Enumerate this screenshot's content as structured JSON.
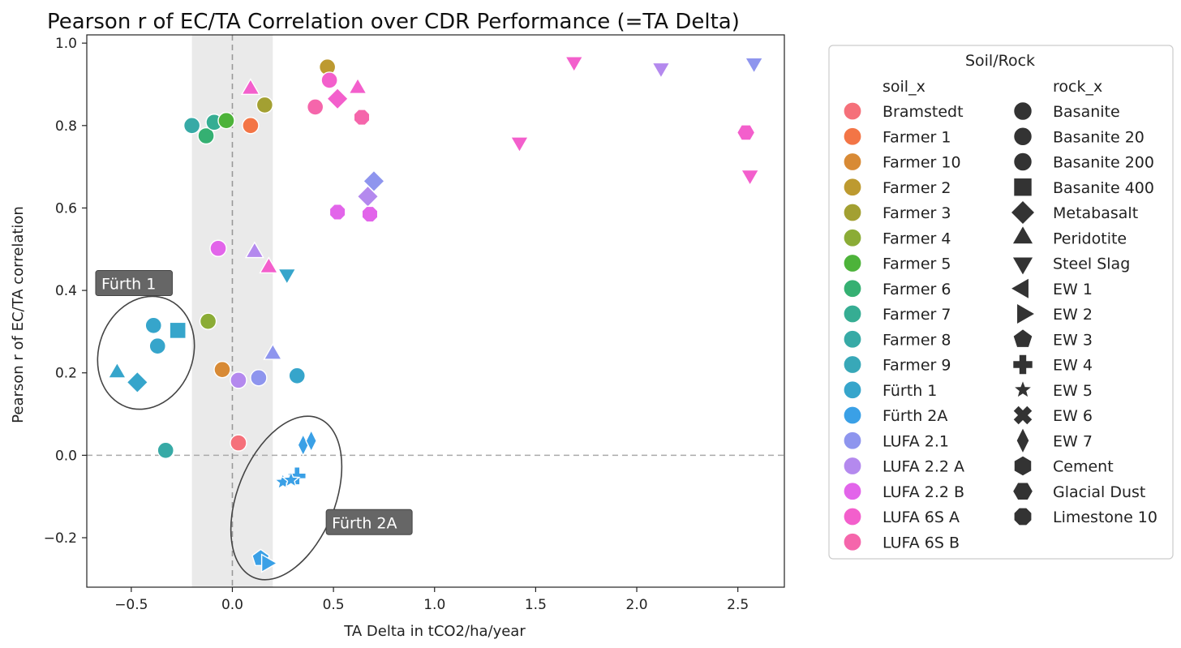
{
  "chart_data": {
    "type": "scatter",
    "title": "Pearson r of EC/TA Correlation over CDR Performance (=TA Delta)",
    "xlabel": "TA Delta in tCO2/ha/year",
    "ylabel": "Pearson r of EC/TA correlation",
    "xlim": [
      -0.72,
      2.73
    ],
    "ylim": [
      -0.32,
      1.02
    ],
    "xticks": [
      -0.5,
      0.0,
      0.5,
      1.0,
      1.5,
      2.0,
      2.5
    ],
    "xtick_labels": [
      "−0.5",
      "0.0",
      "0.5",
      "1.0",
      "1.5",
      "2.0",
      "2.5"
    ],
    "yticks": [
      -0.2,
      0.0,
      0.2,
      0.4,
      0.6,
      0.8,
      1.0
    ],
    "ytick_labels": [
      "−0.2",
      "0.0",
      "0.2",
      "0.4",
      "0.6",
      "0.8",
      "1.0"
    ],
    "shaded_band": [
      -0.2,
      0.2
    ],
    "reference_lines": {
      "x": 0.0,
      "y": 0.0
    },
    "annotations": [
      {
        "label": "Fürth 1",
        "x": -0.66,
        "y": 0.405
      },
      {
        "label": "Fürth 2A",
        "x": 0.48,
        "y": -0.175
      }
    ],
    "legend": {
      "title": "Soil/Rock",
      "soil_header": "soil_x",
      "rock_header": "rock_x",
      "soils": [
        {
          "name": "Bramstedt",
          "color": "#f5707a"
        },
        {
          "name": "Farmer 1",
          "color": "#f37546"
        },
        {
          "name": "Farmer 10",
          "color": "#d88a35"
        },
        {
          "name": "Farmer 2",
          "color": "#bd9a30"
        },
        {
          "name": "Farmer 3",
          "color": "#a3a032"
        },
        {
          "name": "Farmer 4",
          "color": "#8bac36"
        },
        {
          "name": "Farmer 5",
          "color": "#4db33a"
        },
        {
          "name": "Farmer 6",
          "color": "#35b072"
        },
        {
          "name": "Farmer 7",
          "color": "#36ad93"
        },
        {
          "name": "Farmer 8",
          "color": "#37aaa6"
        },
        {
          "name": "Farmer 9",
          "color": "#38a8b8"
        },
        {
          "name": "Fürth 1",
          "color": "#36a5cb"
        },
        {
          "name": "Fürth 2A",
          "color": "#3aa0e6"
        },
        {
          "name": "LUFA 2.1",
          "color": "#8e95ee"
        },
        {
          "name": "LUFA 2.2 A",
          "color": "#b489ee"
        },
        {
          "name": "LUFA 2.2 B",
          "color": "#e265ea"
        },
        {
          "name": "LUFA 6S A",
          "color": "#f35fcc"
        },
        {
          "name": "LUFA 6S B",
          "color": "#f566ab"
        }
      ],
      "rocks": [
        {
          "name": "Basanite",
          "marker": "circle"
        },
        {
          "name": "Basanite 20",
          "marker": "circle"
        },
        {
          "name": "Basanite 200",
          "marker": "circle"
        },
        {
          "name": "Basanite 400",
          "marker": "square"
        },
        {
          "name": "Metabasalt",
          "marker": "diamond"
        },
        {
          "name": "Peridotite",
          "marker": "triangle-up"
        },
        {
          "name": "Steel Slag",
          "marker": "triangle-down"
        },
        {
          "name": "EW 1",
          "marker": "triangle-left"
        },
        {
          "name": "EW 2",
          "marker": "triangle-right"
        },
        {
          "name": "EW 3",
          "marker": "pentagon"
        },
        {
          "name": "EW 4",
          "marker": "plus"
        },
        {
          "name": "EW 5",
          "marker": "star"
        },
        {
          "name": "EW 6",
          "marker": "x"
        },
        {
          "name": "EW 7",
          "marker": "thin-diamond"
        },
        {
          "name": "Cement",
          "marker": "hexagon"
        },
        {
          "name": "Glacial Dust",
          "marker": "hexagon2"
        },
        {
          "name": "Limestone 10",
          "marker": "octagon"
        }
      ]
    },
    "points": [
      {
        "soil": "Fürth 1",
        "rock": "Basanite",
        "x": -0.39,
        "y": 0.315
      },
      {
        "soil": "Fürth 1",
        "rock": "Basanite 400",
        "x": -0.27,
        "y": 0.303
      },
      {
        "soil": "Fürth 1",
        "rock": "Basanite 20",
        "x": -0.37,
        "y": 0.265
      },
      {
        "soil": "Fürth 1",
        "rock": "Peridotite",
        "x": -0.57,
        "y": 0.2
      },
      {
        "soil": "Fürth 1",
        "rock": "Metabasalt",
        "x": -0.47,
        "y": 0.177
      },
      {
        "soil": "Farmer 4",
        "rock": "Basanite",
        "x": -0.12,
        "y": 0.325
      },
      {
        "soil": "Farmer 10",
        "rock": "Basanite",
        "x": -0.05,
        "y": 0.208
      },
      {
        "soil": "LUFA 2.2 A",
        "rock": "Basanite",
        "x": 0.03,
        "y": 0.182
      },
      {
        "soil": "LUFA 2.1",
        "rock": "Basanite",
        "x": 0.13,
        "y": 0.188
      },
      {
        "soil": "LUFA 2.1",
        "rock": "Peridotite",
        "x": 0.2,
        "y": 0.245
      },
      {
        "soil": "Fürth 1",
        "rock": "Basanite 20",
        "x": 0.32,
        "y": 0.193
      },
      {
        "soil": "Farmer 8",
        "rock": "Basanite",
        "x": -0.33,
        "y": 0.012
      },
      {
        "soil": "Bramstedt",
        "rock": "Basanite",
        "x": 0.03,
        "y": 0.03
      },
      {
        "soil": "Fürth 2A",
        "rock": "EW 7",
        "x": 0.35,
        "y": 0.025
      },
      {
        "soil": "Fürth 2A",
        "rock": "EW 7",
        "x": 0.39,
        "y": 0.035
      },
      {
        "soil": "Fürth 2A",
        "rock": "EW 4",
        "x": 0.32,
        "y": -0.05
      },
      {
        "soil": "Fürth 2A",
        "rock": "EW 5",
        "x": 0.25,
        "y": -0.065
      },
      {
        "soil": "Fürth 2A",
        "rock": "EW 5",
        "x": 0.29,
        "y": -0.06
      },
      {
        "soil": "Fürth 2A",
        "rock": "EW 3",
        "x": 0.14,
        "y": -0.25
      },
      {
        "soil": "Fürth 2A",
        "rock": "EW 2",
        "x": 0.17,
        "y": -0.262
      },
      {
        "soil": "LUFA 2.2 B",
        "rock": "Basanite",
        "x": -0.07,
        "y": 0.502
      },
      {
        "soil": "LUFA 2.2 A",
        "rock": "Peridotite",
        "x": 0.11,
        "y": 0.492
      },
      {
        "soil": "LUFA 6S A",
        "rock": "Peridotite",
        "x": 0.18,
        "y": 0.455
      },
      {
        "soil": "Fürth 1",
        "rock": "Steel Slag",
        "x": 0.27,
        "y": 0.44
      },
      {
        "soil": "Farmer 8",
        "rock": "Basanite",
        "x": -0.2,
        "y": 0.8
      },
      {
        "soil": "Farmer 6",
        "rock": "Basanite",
        "x": -0.13,
        "y": 0.775
      },
      {
        "soil": "Farmer 7",
        "rock": "Basanite",
        "x": -0.09,
        "y": 0.808
      },
      {
        "soil": "Farmer 5",
        "rock": "Basanite",
        "x": -0.03,
        "y": 0.812
      },
      {
        "soil": "Farmer 1",
        "rock": "Basanite",
        "x": 0.09,
        "y": 0.8
      },
      {
        "soil": "LUFA 6S A",
        "rock": "Peridotite",
        "x": 0.09,
        "y": 0.888
      },
      {
        "soil": "Farmer 3",
        "rock": "Basanite",
        "x": 0.16,
        "y": 0.85
      },
      {
        "soil": "Farmer 2",
        "rock": "Basanite",
        "x": 0.47,
        "y": 0.942
      },
      {
        "soil": "LUFA 6S A",
        "rock": "Basanite",
        "x": 0.48,
        "y": 0.91
      },
      {
        "soil": "LUFA 6S B",
        "rock": "Basanite",
        "x": 0.41,
        "y": 0.845
      },
      {
        "soil": "LUFA 6S A",
        "rock": "Metabasalt",
        "x": 0.52,
        "y": 0.865
      },
      {
        "soil": "LUFA 6S A",
        "rock": "Peridotite",
        "x": 0.62,
        "y": 0.89
      },
      {
        "soil": "LUFA 6S B",
        "rock": "Limestone 10",
        "x": 0.64,
        "y": 0.82
      },
      {
        "soil": "LUFA 2.1",
        "rock": "Metabasalt",
        "x": 0.7,
        "y": 0.665
      },
      {
        "soil": "LUFA 2.2 A",
        "rock": "Metabasalt",
        "x": 0.67,
        "y": 0.628
      },
      {
        "soil": "LUFA 2.2 B",
        "rock": "Limestone 10",
        "x": 0.52,
        "y": 0.59
      },
      {
        "soil": "LUFA 2.2 B",
        "rock": "Limestone 10",
        "x": 0.68,
        "y": 0.585
      },
      {
        "soil": "LUFA 6S A",
        "rock": "Steel Slag",
        "x": 1.42,
        "y": 0.76
      },
      {
        "soil": "LUFA 6S A",
        "rock": "Steel Slag",
        "x": 1.69,
        "y": 0.955
      },
      {
        "soil": "LUFA 2.2 A",
        "rock": "Steel Slag",
        "x": 2.12,
        "y": 0.94
      },
      {
        "soil": "LUFA 2.1",
        "rock": "Steel Slag",
        "x": 2.58,
        "y": 0.952
      },
      {
        "soil": "LUFA 6S A",
        "rock": "Glacial Dust",
        "x": 2.54,
        "y": 0.783
      },
      {
        "soil": "LUFA 6S A",
        "rock": "Steel Slag",
        "x": 2.56,
        "y": 0.68
      }
    ]
  }
}
